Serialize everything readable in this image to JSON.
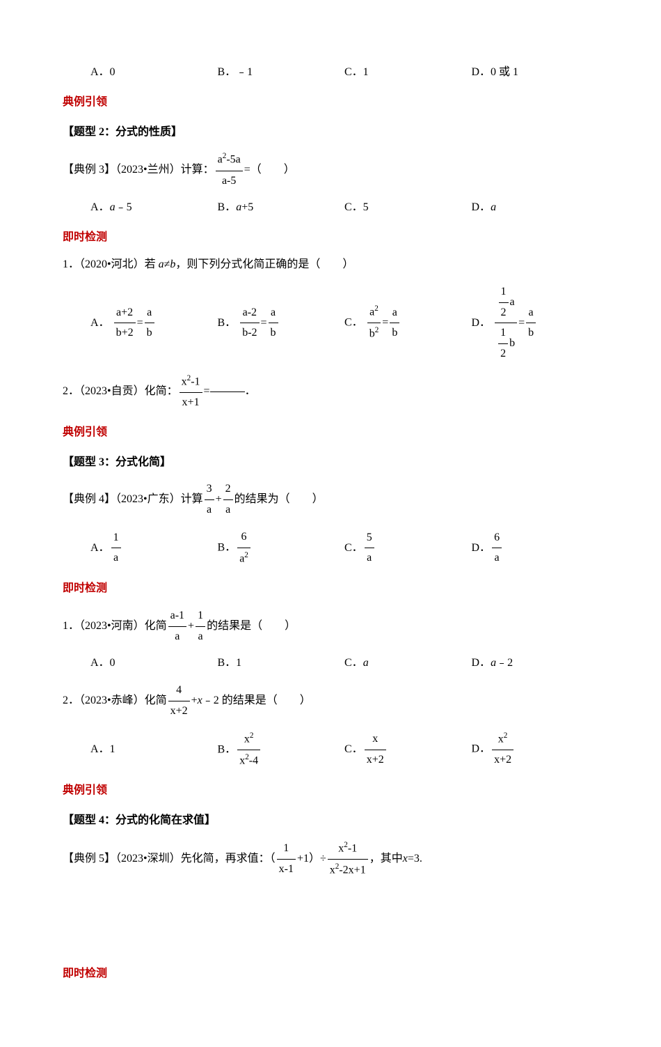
{
  "q1_options": {
    "a": "A．0",
    "b": "B．﹣1",
    "c": "C．1",
    "d": "D．0 或 1"
  },
  "headers": {
    "example_lead": "典例引领",
    "type2": "【题型 2：分式的性质】",
    "type3": "【题型 3：分式化简】",
    "type4": "【题型 4：分式的化简在求值】",
    "instant_test": "即时检测"
  },
  "example3": {
    "label": "【典例 3】（2023•兰州）计算：",
    "frac_num": "a",
    "frac_num_exp": "2",
    "frac_num_rest": "-5a",
    "frac_den": "a-5",
    "equals": " =（　　）",
    "opt_a": "A．",
    "opt_a_val": "a",
    "opt_a_rest": "﹣5",
    "opt_b": "B．",
    "opt_b_val": "a",
    "opt_b_rest": "+5",
    "opt_c": "C．5",
    "opt_d": "D．",
    "opt_d_val": "a"
  },
  "test2_1": {
    "label": "1．（2020•河北）若 ",
    "var_a": "a",
    "neq": "≠",
    "var_b": "b",
    "rest": "，则下列分式化简正确的是（　　）",
    "a_label": "A．",
    "a_num": "a+2",
    "a_den": "b+2",
    "a_eq_num": "a",
    "a_eq_den": "b",
    "b_label": "B．",
    "b_num": "a-2",
    "b_den": "b-2",
    "b_eq_num": "a",
    "b_eq_den": "b",
    "c_label": "C．",
    "c_num_base": "a",
    "c_num_exp": "2",
    "c_den_base": "b",
    "c_den_exp": "2",
    "c_eq_num": "a",
    "c_eq_den": "b",
    "d_label": "D．",
    "d_num_num": "1",
    "d_num_den": "2",
    "d_num_var": "a",
    "d_den_num": "1",
    "d_den_den": "2",
    "d_den_var": "b",
    "d_eq_num": "a",
    "d_eq_den": "b"
  },
  "test2_2": {
    "label": "2．（2023•自贡）化简：",
    "frac_num_base": "x",
    "frac_num_exp": "2",
    "frac_num_rest": "-1",
    "frac_den": "x+1",
    "equals": " ="
  },
  "example4": {
    "label": "【典例 4】（2023•广东）计算",
    "f1_num": "3",
    "f1_den": "a",
    "plus": "+",
    "f2_num": "2",
    "f2_den": "a",
    "rest": "的结果为（　　）",
    "a_label": "A．",
    "a_num": "1",
    "a_den": "a",
    "b_label": "B．",
    "b_num": "6",
    "b_den_base": "a",
    "b_den_exp": "2",
    "c_label": "C．",
    "c_num": "5",
    "c_den": "a",
    "d_label": "D．",
    "d_num": "6",
    "d_den": "a"
  },
  "test3_1": {
    "label": "1．（2023•河南）化简",
    "f1_num": "a-1",
    "f1_den": "a",
    "plus": "+",
    "f2_num": "1",
    "f2_den": "a",
    "rest": "的结果是（　　）",
    "opt_a": "A．0",
    "opt_b": "B．1",
    "opt_c": "C．",
    "opt_c_val": "a",
    "opt_d": "D．",
    "opt_d_val": "a",
    "opt_d_rest": "﹣2"
  },
  "test3_2": {
    "label": "2．（2023•赤峰）化简",
    "f_num": "4",
    "f_den": "x+2",
    "plus": "+",
    "var_x": "x",
    "rest": "﹣2 的结果是（　　）",
    "a_label": "A．1",
    "b_label": "B．",
    "b_num_base": "x",
    "b_num_exp": "2",
    "b_den_base": "x",
    "b_den_exp": "2",
    "b_den_rest": "-4",
    "c_label": "C．",
    "c_num": "x",
    "c_den": "x+2",
    "d_label": "D．",
    "d_num_base": "x",
    "d_num_exp": "2",
    "d_den": "x+2"
  },
  "example5": {
    "label": "【典例 5】（2023•深圳）先化简，再求值：（",
    "f1_num": "1",
    "f1_den": "x-1",
    "plus1": "+1）÷",
    "f2_num_base": "x",
    "f2_num_exp": "2",
    "f2_num_rest": "-1",
    "f2_den_base": "x",
    "f2_den_exp": "2",
    "f2_den_rest": "-2x+1",
    "rest": "，其中 ",
    "var_x": "x",
    "eq": "=3."
  }
}
